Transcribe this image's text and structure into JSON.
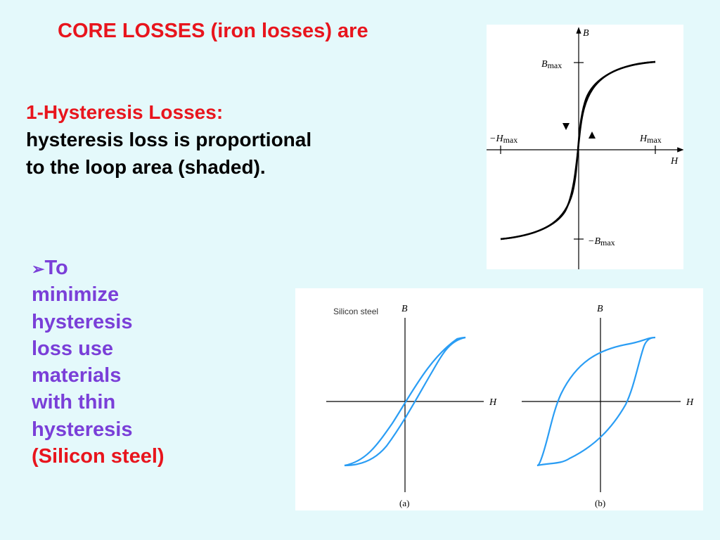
{
  "title": "CORE LOSSES (iron losses) are",
  "hysteresis": {
    "heading": "1-Hysteresis Losses:",
    "line1": "hysteresis loss is proportional",
    "line2": "to the loop area (shaded)."
  },
  "bullet": {
    "arrow_icon": "right-arrow-bullet-icon",
    "lines": [
      "To",
      "minimize",
      "hysteresis",
      "loss use",
      "materials",
      "with thin",
      "hysteresis"
    ],
    "last_line": "(Silicon steel)"
  },
  "figure1": {
    "axis_b": "B",
    "axis_h": "H",
    "b_max": "B",
    "b_max_sub": "max",
    "neg_b_max": "−B",
    "neg_b_max_sub": "max",
    "h_max": "H",
    "h_max_sub": "max",
    "neg_h_max": "−H",
    "neg_h_max_sub": "max",
    "shade_color": "#e0e0e0"
  },
  "figure2": {
    "material_label": "Silicon steel",
    "axis_b": "B",
    "axis_h": "H",
    "caption_a": "(a)",
    "caption_b": "(b)",
    "curve_color": "#2a9df4"
  }
}
